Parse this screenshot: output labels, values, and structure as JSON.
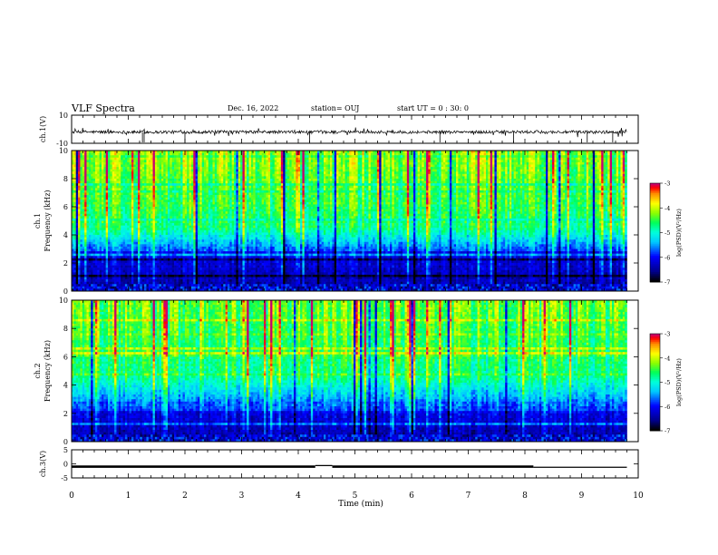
{
  "header": {
    "title": "VLF Spectra",
    "date": "Dec. 16, 2022",
    "station": "station= OUJ",
    "start": "start UT = 0 : 30: 0"
  },
  "chart_data": [
    {
      "type": "line",
      "name": "ch1-waveform",
      "ylabel": "ch.1(V)",
      "ylim": [
        -10,
        10
      ],
      "yticks": [
        "10",
        "-10"
      ],
      "xlim": [
        0,
        10
      ],
      "baseline": -2,
      "line_color": "#000000"
    },
    {
      "type": "heatmap",
      "name": "ch1-spectrogram",
      "ylabel_top": "ch.1",
      "ylabel": "Frequency (kHz)",
      "ylim": [
        0,
        10
      ],
      "yticks": [
        "0",
        "2",
        "4",
        "6",
        "8",
        "10"
      ],
      "xlim": [
        0,
        9.8
      ],
      "colorbar": {
        "label": "log(PSD)(V²/Hz)",
        "range": [
          -7,
          -3
        ],
        "ticks": [
          "-3",
          "-4",
          "-5",
          "-6",
          "-7"
        ]
      }
    },
    {
      "type": "heatmap",
      "name": "ch2-spectrogram",
      "ylabel_top": "ch.2",
      "ylabel": "Frequency (kHz)",
      "ylim": [
        0,
        10
      ],
      "yticks": [
        "0",
        "2",
        "4",
        "6",
        "8",
        "10"
      ],
      "xlim": [
        0,
        9.8
      ],
      "colorbar": {
        "label": "log(PSD)(V²/Hz)",
        "range": [
          -7,
          -3
        ],
        "ticks": [
          "-3",
          "-4",
          "-5",
          "-6",
          "-7"
        ]
      }
    },
    {
      "type": "line",
      "name": "ch3-signal",
      "ylabel": "ch.3(V)",
      "ylim": [
        -5,
        5
      ],
      "yticks": [
        "5",
        "0",
        "-5"
      ],
      "xlim": [
        0,
        10
      ],
      "segments": [
        [
          0,
          4.3,
          -1
        ],
        [
          4.3,
          4.6,
          -0.6
        ],
        [
          4.6,
          8.15,
          -1
        ],
        [
          8.15,
          9.8,
          -1.2
        ]
      ],
      "xlabel": "Time (min)",
      "xticks": [
        "0",
        "1",
        "2",
        "3",
        "4",
        "5",
        "6",
        "7",
        "8",
        "9",
        "10"
      ]
    }
  ],
  "colors": {
    "colormap": [
      "#000000",
      "#0000a0",
      "#0000ff",
      "#00c8ff",
      "#00ffff",
      "#00ff80",
      "#66ff00",
      "#ccff00",
      "#ffff00",
      "#ff9900",
      "#ff0000",
      "#cc0066",
      "#ffffff"
    ]
  }
}
